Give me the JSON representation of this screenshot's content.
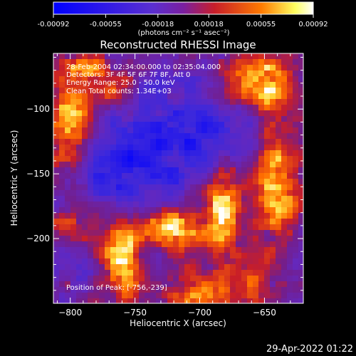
{
  "colorbar": {
    "tick_labels": [
      "-0.00092",
      "-0.00055",
      "-0.00018",
      "0.00018",
      "0.00055",
      "0.00092"
    ],
    "unit_label": "(photons cm⁻² s⁻¹ asec⁻²)"
  },
  "plot": {
    "title": "Reconstructed RHESSI Image",
    "info_lines": [
      "28-Feb-2004 02:34:00.000 to 02:35:04.000",
      "Detectors: 3F 4F 5F 6F 7F 8F, Att 0",
      "Energy Range: 25.0 - 50.0 keV",
      "Clean     Total counts: 1.34E+03"
    ],
    "position_label": "Position of Peak: [-756,-239]"
  },
  "footer": {
    "timestamp": "29-Apr-2022 01:22"
  },
  "chart_data": {
    "type": "heatmap",
    "title": "Reconstructed RHESSI Image",
    "xlabel": "Heliocentric X (arcsec)",
    "ylabel": "Heliocentric Y (arcsec)",
    "xlim": [
      -813,
      -620
    ],
    "ylim": [
      -250,
      -57
    ],
    "x_ticks": [
      -800,
      -750,
      -700,
      -650
    ],
    "y_ticks": [
      -100,
      -150,
      -200
    ],
    "color_range": [
      -0.00092,
      0.00092
    ],
    "colormap": [
      "#0000ff",
      "#6a1fbf",
      "#c81e2a",
      "#ff7a00",
      "#ffff80",
      "#ffffff"
    ],
    "peak": [
      -756,
      -239
    ],
    "blobs": [
      {
        "x": -760,
        "y": -215,
        "sx": 10,
        "sy": 20,
        "a": 1.0
      },
      {
        "x": -722,
        "y": -190,
        "sx": 18,
        "sy": 12,
        "a": 0.95
      },
      {
        "x": -682,
        "y": -178,
        "sx": 10,
        "sy": 25,
        "a": 0.95
      },
      {
        "x": -640,
        "y": -160,
        "sx": 12,
        "sy": 30,
        "a": 0.85
      },
      {
        "x": -650,
        "y": -80,
        "sx": 18,
        "sy": 15,
        "a": 0.9
      },
      {
        "x": -800,
        "y": -110,
        "sx": 12,
        "sy": 25,
        "a": 0.75
      },
      {
        "x": -790,
        "y": -70,
        "sx": 18,
        "sy": 10,
        "a": 0.55
      },
      {
        "x": -700,
        "y": -240,
        "sx": 30,
        "sy": 12,
        "a": 0.55
      },
      {
        "x": -770,
        "y": -85,
        "sx": 10,
        "sy": 10,
        "a": 0.45
      },
      {
        "x": -800,
        "y": -190,
        "sx": 14,
        "sy": 10,
        "a": 0.4
      },
      {
        "x": -660,
        "y": -230,
        "sx": 10,
        "sy": 12,
        "a": 0.45
      }
    ],
    "voids": [
      {
        "x": -735,
        "y": -125,
        "sx": 35,
        "sy": 30,
        "a": 0.6
      },
      {
        "x": -760,
        "y": -160,
        "sx": 20,
        "sy": 20,
        "a": 0.4
      },
      {
        "x": -690,
        "y": -120,
        "sx": 20,
        "sy": 20,
        "a": 0.4
      }
    ]
  }
}
